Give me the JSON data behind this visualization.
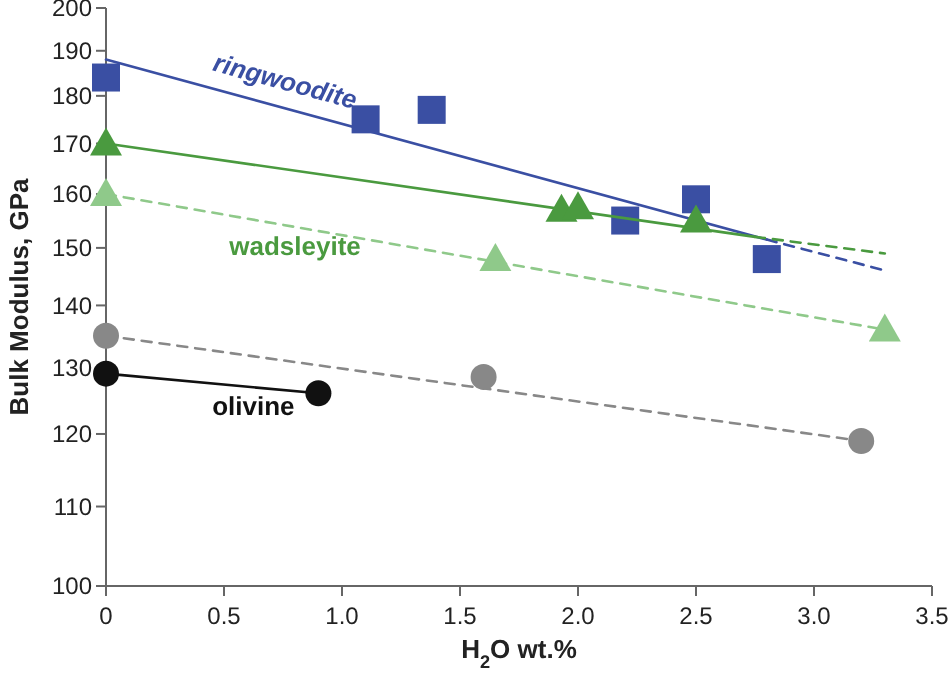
{
  "chart_data": {
    "type": "scatter",
    "xlabel": "H$_{2}$O wt.%",
    "ylabel": "Bulk Modulus, GPa",
    "log": true,
    "xlim": [
      0,
      3.5
    ],
    "xticks": [
      {
        "value": 0,
        "label": "0"
      },
      {
        "value": 0.5,
        "label": "0.5"
      },
      {
        "value": 1,
        "label": "1.0"
      },
      {
        "value": 1.5,
        "label": "1.5"
      },
      {
        "value": 2,
        "label": "2.0"
      },
      {
        "value": 2.5,
        "label": "2.5"
      },
      {
        "value": 3,
        "label": "3.0"
      },
      {
        "value": 3.5,
        "label": "3.5"
      }
    ],
    "ylim": [
      100,
      200
    ],
    "yticks": [
      100,
      110,
      120,
      130,
      140,
      150,
      160,
      170,
      180,
      190,
      200
    ],
    "grid": false,
    "series": [
      {
        "type": "line",
        "name": "ringwoodite",
        "color": "#3a4fa3",
        "x": [
          0,
          2.8
        ],
        "values": [
          188,
          151.5
        ],
        "marker": "none",
        "line_style": "solid"
      },
      {
        "type": "line",
        "color": "#3a4fa3",
        "x": [
          2.8,
          3.3
        ],
        "values": [
          151.5,
          146
        ],
        "marker": "none",
        "line_style": "dashed"
      },
      {
        "color": "#3a4fa3",
        "x": [
          0,
          1.1,
          1.38,
          2.2,
          2.5,
          2.8
        ],
        "values": [
          184,
          175,
          177,
          155,
          159,
          148
        ],
        "marker": "square"
      },
      {
        "type": "line",
        "name": "wadsleyite",
        "color": "#4a9a3f",
        "x": [
          0,
          2.75
        ],
        "values": [
          170,
          152
        ],
        "marker": "none",
        "line_style": "solid"
      },
      {
        "type": "line",
        "color": "#4a9a3f",
        "x": [
          2.75,
          3.3
        ],
        "values": [
          152,
          149
        ],
        "marker": "none",
        "line_style": "dashed"
      },
      {
        "color": "#4a9a3f",
        "x": [
          0,
          1.93,
          2.0,
          2.5
        ],
        "values": [
          170,
          157,
          157.5,
          155
        ],
        "marker": "triangle"
      },
      {
        "type": "line",
        "color": "#8fc98a",
        "x": [
          0,
          3.3
        ],
        "values": [
          160,
          136
        ],
        "marker": "none",
        "line_style": "dashed"
      },
      {
        "color": "#8fc98a",
        "x": [
          0,
          1.65,
          3.3
        ],
        "values": [
          160,
          148,
          136
        ],
        "marker": "triangle"
      },
      {
        "type": "line",
        "color": "#888888",
        "x": [
          0,
          3.2
        ],
        "values": [
          135,
          119
        ],
        "marker": "none",
        "line_style": "dashed"
      },
      {
        "color": "#888888",
        "x": [
          0,
          1.6,
          3.2
        ],
        "values": [
          135,
          128.5,
          119
        ],
        "marker": "circle"
      },
      {
        "type": "line",
        "name": "olivine",
        "color": "#111111",
        "x": [
          0,
          0.9
        ],
        "values": [
          129,
          126
        ],
        "marker": "circle",
        "line_style": "solid"
      }
    ]
  }
}
